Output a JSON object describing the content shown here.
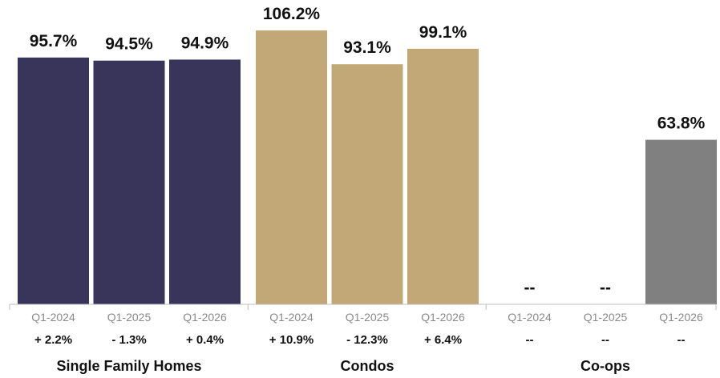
{
  "chart_data": {
    "type": "bar",
    "ylim": [
      0,
      115
    ],
    "grid": false,
    "groups": [
      {
        "name": "Single Family Homes",
        "color": "#39355a",
        "categories": [
          "Q1-2024",
          "Q1-2025",
          "Q1-2026"
        ],
        "values": [
          95.7,
          94.5,
          94.9
        ],
        "value_labels": [
          "95.7%",
          "94.5%",
          "94.9%"
        ],
        "changes": [
          "+ 2.2%",
          "- 1.3%",
          "+ 0.4%"
        ]
      },
      {
        "name": "Condos",
        "color": "#c2a877",
        "categories": [
          "Q1-2024",
          "Q1-2025",
          "Q1-2026"
        ],
        "values": [
          106.2,
          93.1,
          99.1
        ],
        "value_labels": [
          "106.2%",
          "93.1%",
          "99.1%"
        ],
        "changes": [
          "+ 10.9%",
          "- 12.3%",
          "+ 6.4%"
        ]
      },
      {
        "name": "Co-ops",
        "color": "#808080",
        "categories": [
          "Q1-2024",
          "Q1-2025",
          "Q1-2026"
        ],
        "values": [
          null,
          null,
          63.8
        ],
        "value_labels": [
          "--",
          "--",
          "63.8%"
        ],
        "changes": [
          "--",
          "--",
          "--"
        ]
      }
    ]
  }
}
